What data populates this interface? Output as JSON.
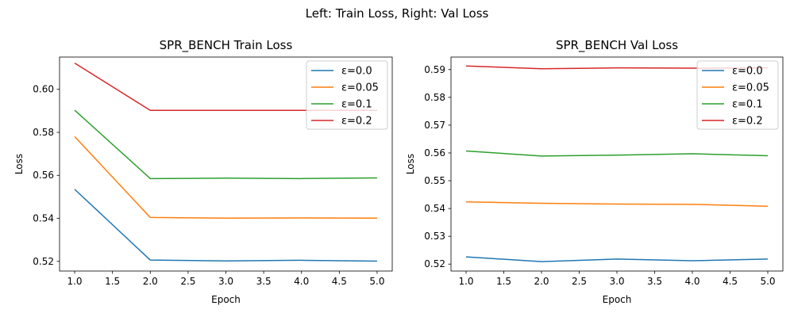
{
  "figure_title": "Left: Train Loss, Right: Val Loss",
  "chart_data": [
    {
      "type": "line",
      "title": "SPR_BENCH Train Loss",
      "xlabel": "Epoch",
      "ylabel": "Loss",
      "x": [
        1,
        2,
        3,
        4,
        5
      ],
      "xlim": [
        0.8,
        5.2
      ],
      "ylim": [
        0.5155,
        0.615
      ],
      "xticks": [
        1.0,
        1.5,
        2.0,
        2.5,
        3.0,
        3.5,
        4.0,
        4.5,
        5.0
      ],
      "xtick_labels": [
        "1.0",
        "1.5",
        "2.0",
        "2.5",
        "3.0",
        "3.5",
        "4.0",
        "4.5",
        "5.0"
      ],
      "yticks": [
        0.52,
        0.54,
        0.56,
        0.58,
        0.6
      ],
      "ytick_labels": [
        "0.52",
        "0.54",
        "0.56",
        "0.58",
        "0.60"
      ],
      "grid": false,
      "legend": "top-right",
      "series": [
        {
          "name": "ε=0.0",
          "color": "#1f77b4",
          "values": [
            0.5535,
            0.5206,
            0.5202,
            0.5205,
            0.5201
          ]
        },
        {
          "name": "ε=0.05",
          "color": "#ff7f0e",
          "values": [
            0.578,
            0.5404,
            0.5401,
            0.5402,
            0.5401
          ]
        },
        {
          "name": "ε=0.1",
          "color": "#2ca02c",
          "values": [
            0.5903,
            0.5585,
            0.5587,
            0.5585,
            0.5588
          ]
        },
        {
          "name": "ε=0.2",
          "color": "#d62728",
          "values": [
            0.6122,
            0.5902,
            0.5902,
            0.5902,
            0.5902
          ]
        }
      ]
    },
    {
      "type": "line",
      "title": "SPR_BENCH Val Loss",
      "xlabel": "Epoch",
      "ylabel": "Loss",
      "x": [
        1,
        2,
        3,
        4,
        5
      ],
      "xlim": [
        0.8,
        5.2
      ],
      "ylim": [
        0.5175,
        0.5945
      ],
      "xticks": [
        1.0,
        1.5,
        2.0,
        2.5,
        3.0,
        3.5,
        4.0,
        4.5,
        5.0
      ],
      "xtick_labels": [
        "1.0",
        "1.5",
        "2.0",
        "2.5",
        "3.0",
        "3.5",
        "4.0",
        "4.5",
        "5.0"
      ],
      "yticks": [
        0.52,
        0.53,
        0.54,
        0.55,
        0.56,
        0.57,
        0.58,
        0.59
      ],
      "ytick_labels": [
        "0.52",
        "0.53",
        "0.54",
        "0.55",
        "0.56",
        "0.57",
        "0.58",
        "0.59"
      ],
      "grid": false,
      "legend": "top-right",
      "series": [
        {
          "name": "ε=0.0",
          "color": "#1f77b4",
          "values": [
            0.5226,
            0.5209,
            0.5218,
            0.5212,
            0.5218
          ]
        },
        {
          "name": "ε=0.05",
          "color": "#ff7f0e",
          "values": [
            0.5424,
            0.5419,
            0.5416,
            0.5415,
            0.5408
          ]
        },
        {
          "name": "ε=0.1",
          "color": "#2ca02c",
          "values": [
            0.5607,
            0.5589,
            0.5592,
            0.5597,
            0.559
          ]
        },
        {
          "name": "ε=0.2",
          "color": "#d62728",
          "values": [
            0.5913,
            0.5903,
            0.5906,
            0.5905,
            0.5906
          ]
        }
      ]
    }
  ]
}
